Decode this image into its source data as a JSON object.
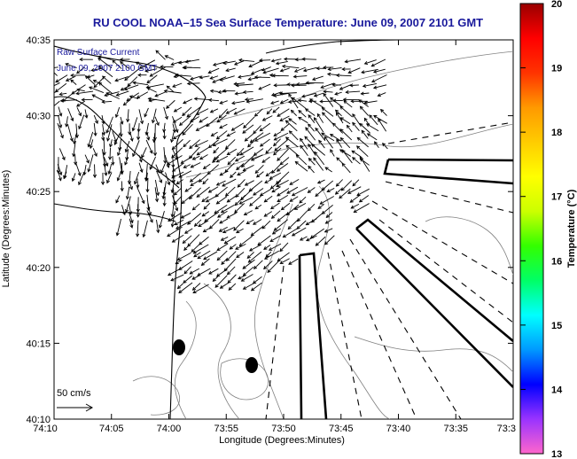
{
  "title": "RU COOL  NOAA–15  Sea Surface Temperature:  June 09, 2007 2101 GMT",
  "legend": {
    "line1": "Raw Surface Current",
    "line2": "June 09, 2007 2100 GMT"
  },
  "scale_arrow_label": "50 cm/s",
  "xlabel": "Longitude (Degrees:Minutes)",
  "ylabel": "Latitude (Degrees:Minutes)",
  "x_ticks": [
    "74:10",
    "74:05",
    "74:00",
    "73:55",
    "73:50",
    "73:45",
    "73:40",
    "73:35",
    "73:3"
  ],
  "y_ticks": [
    "40:35",
    "40:30",
    "40:25",
    "40:20",
    "40:15",
    "40:10"
  ],
  "colorbar": {
    "label": "Temperature (°C)",
    "ticks": [
      "20",
      "19",
      "18",
      "17",
      "16",
      "15",
      "14",
      "13"
    ],
    "range": [
      13,
      20
    ],
    "colors": [
      "#ff66cc",
      "#9933ff",
      "#0000ff",
      "#0099ff",
      "#00ffff",
      "#00ff66",
      "#33ff00",
      "#ccff00",
      "#ffff00",
      "#ffcc00",
      "#ff9900",
      "#ff3300",
      "#ff0000",
      "#990000"
    ]
  },
  "map_colors": {
    "contour": "#808080",
    "coast": "#000000",
    "arrow": "#000000"
  }
}
